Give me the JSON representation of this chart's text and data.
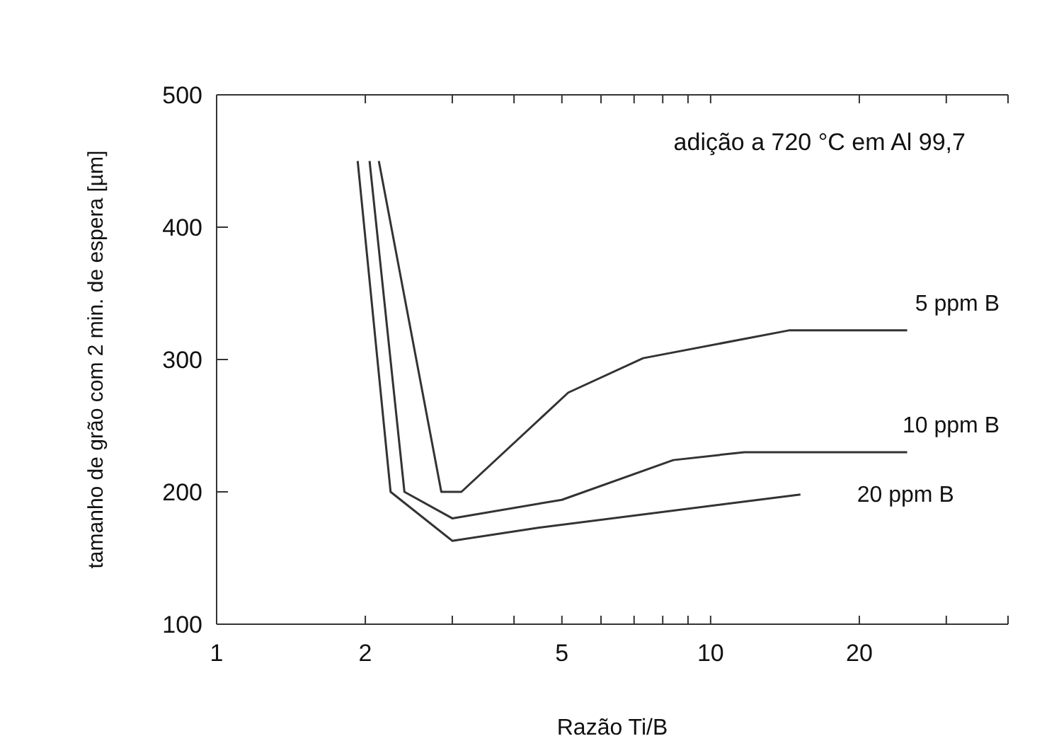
{
  "chart_data": {
    "type": "line",
    "xlabel": "Razão Ti/B",
    "ylabel": "tamanho de grão com 2 min. de espera [µm]",
    "log": "x",
    "xlim": [
      1,
      40
    ],
    "xticks": [
      1,
      2,
      {
        "value": 3,
        "label": null
      },
      {
        "value": 4,
        "label": null
      },
      5,
      {
        "value": 6,
        "label": null
      },
      {
        "value": 7,
        "label": null
      },
      {
        "value": 8,
        "label": null
      },
      {
        "value": 9,
        "label": null
      },
      10,
      20,
      {
        "value": 30,
        "label": null
      },
      {
        "value": 40,
        "label": null
      }
    ],
    "ylim": [
      100,
      500
    ],
    "yticks": [
      100,
      200,
      300,
      400,
      500
    ],
    "marker": "none",
    "line_style": "solid",
    "annotations": [
      "adição a 720 °C em Al 99,7"
    ],
    "series": [
      {
        "name": "5 ppm B",
        "color": "#333333",
        "x": [
          2.13,
          2.85,
          3.13,
          5.15,
          7.3,
          14.4,
          25
        ],
        "values": [
          450,
          200,
          200,
          275,
          301,
          322,
          322
        ]
      },
      {
        "name": "10 ppm B",
        "color": "#333333",
        "x": [
          2.04,
          2.4,
          3.0,
          5.0,
          8.4,
          11.7,
          25
        ],
        "values": [
          450,
          200,
          180,
          194,
          224,
          230,
          230
        ]
      },
      {
        "name": "20 ppm B",
        "color": "#333333",
        "x": [
          1.93,
          2.25,
          3.0,
          4.5,
          15.2
        ],
        "values": [
          450,
          200,
          163,
          173,
          198
        ]
      }
    ]
  }
}
